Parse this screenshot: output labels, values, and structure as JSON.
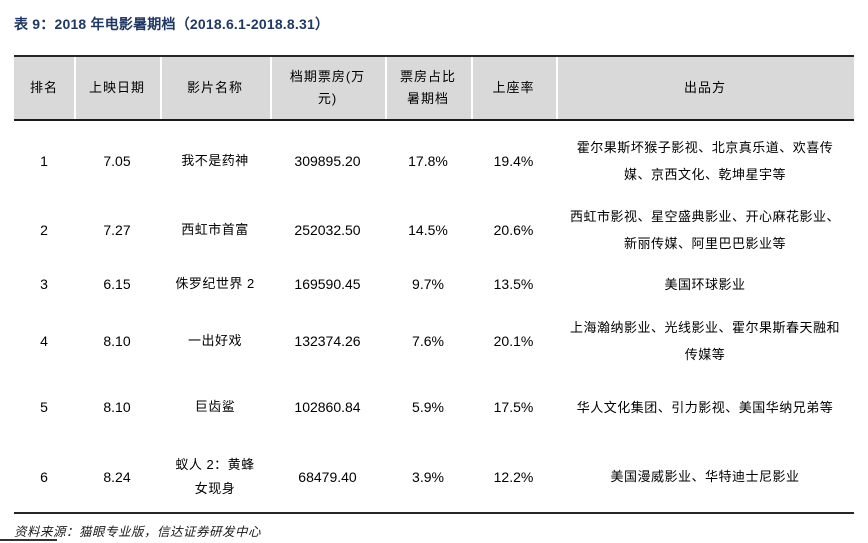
{
  "page": {
    "title": "表 9：2018 年电影暑期档（2018.6.1-2018.8.31）",
    "source": "资料来源：猫眼专业版，信达证券研发中心"
  },
  "colors": {
    "title_navy": "#1F3864",
    "header_background": "#D9D9D9",
    "rule_dark": "#262626"
  },
  "table": {
    "columns": [
      "排名",
      "上映日期",
      "影片名称",
      "档期票房(万元)",
      "票房占比暑期档",
      "上座率",
      "出品方"
    ],
    "rows": [
      {
        "rank": "1",
        "release_date": "7.05",
        "film_title": "我不是药神",
        "box_office": "309895.20",
        "share_of_summer": "17.8%",
        "attendance_rate": "19.4%",
        "producers": "霍尔果斯坏猴子影视、北京真乐道、欢喜传媒、京西文化、乾坤星宇等"
      },
      {
        "rank": "2",
        "release_date": "7.27",
        "film_title": "西虹市首富",
        "box_office": "252032.50",
        "share_of_summer": "14.5%",
        "attendance_rate": "20.6%",
        "producers": "西虹市影视、星空盛典影业、开心麻花影业、新丽传媒、阿里巴巴影业等"
      },
      {
        "rank": "3",
        "release_date": "6.15",
        "film_title": "侏罗纪世界 2",
        "box_office": "169590.45",
        "share_of_summer": "9.7%",
        "attendance_rate": "13.5%",
        "producers": "美国环球影业"
      },
      {
        "rank": "4",
        "release_date": "8.10",
        "film_title": "一出好戏",
        "box_office": "132374.26",
        "share_of_summer": "7.6%",
        "attendance_rate": "20.1%",
        "producers": "上海瀚纳影业、光线影业、霍尔果斯春天融和传媒等"
      },
      {
        "rank": "5",
        "release_date": "8.10",
        "film_title": "巨齿鲨",
        "box_office": "102860.84",
        "share_of_summer": "5.9%",
        "attendance_rate": "17.5%",
        "producers": "华人文化集团、引力影视、美国华纳兄弟等"
      },
      {
        "rank": "6",
        "release_date": "8.24",
        "film_title": "蚁人 2：黄蜂女现身",
        "box_office": "68479.40",
        "share_of_summer": "3.9%",
        "attendance_rate": "12.2%",
        "producers": "美国漫威影业、华特迪士尼影业"
      }
    ]
  }
}
